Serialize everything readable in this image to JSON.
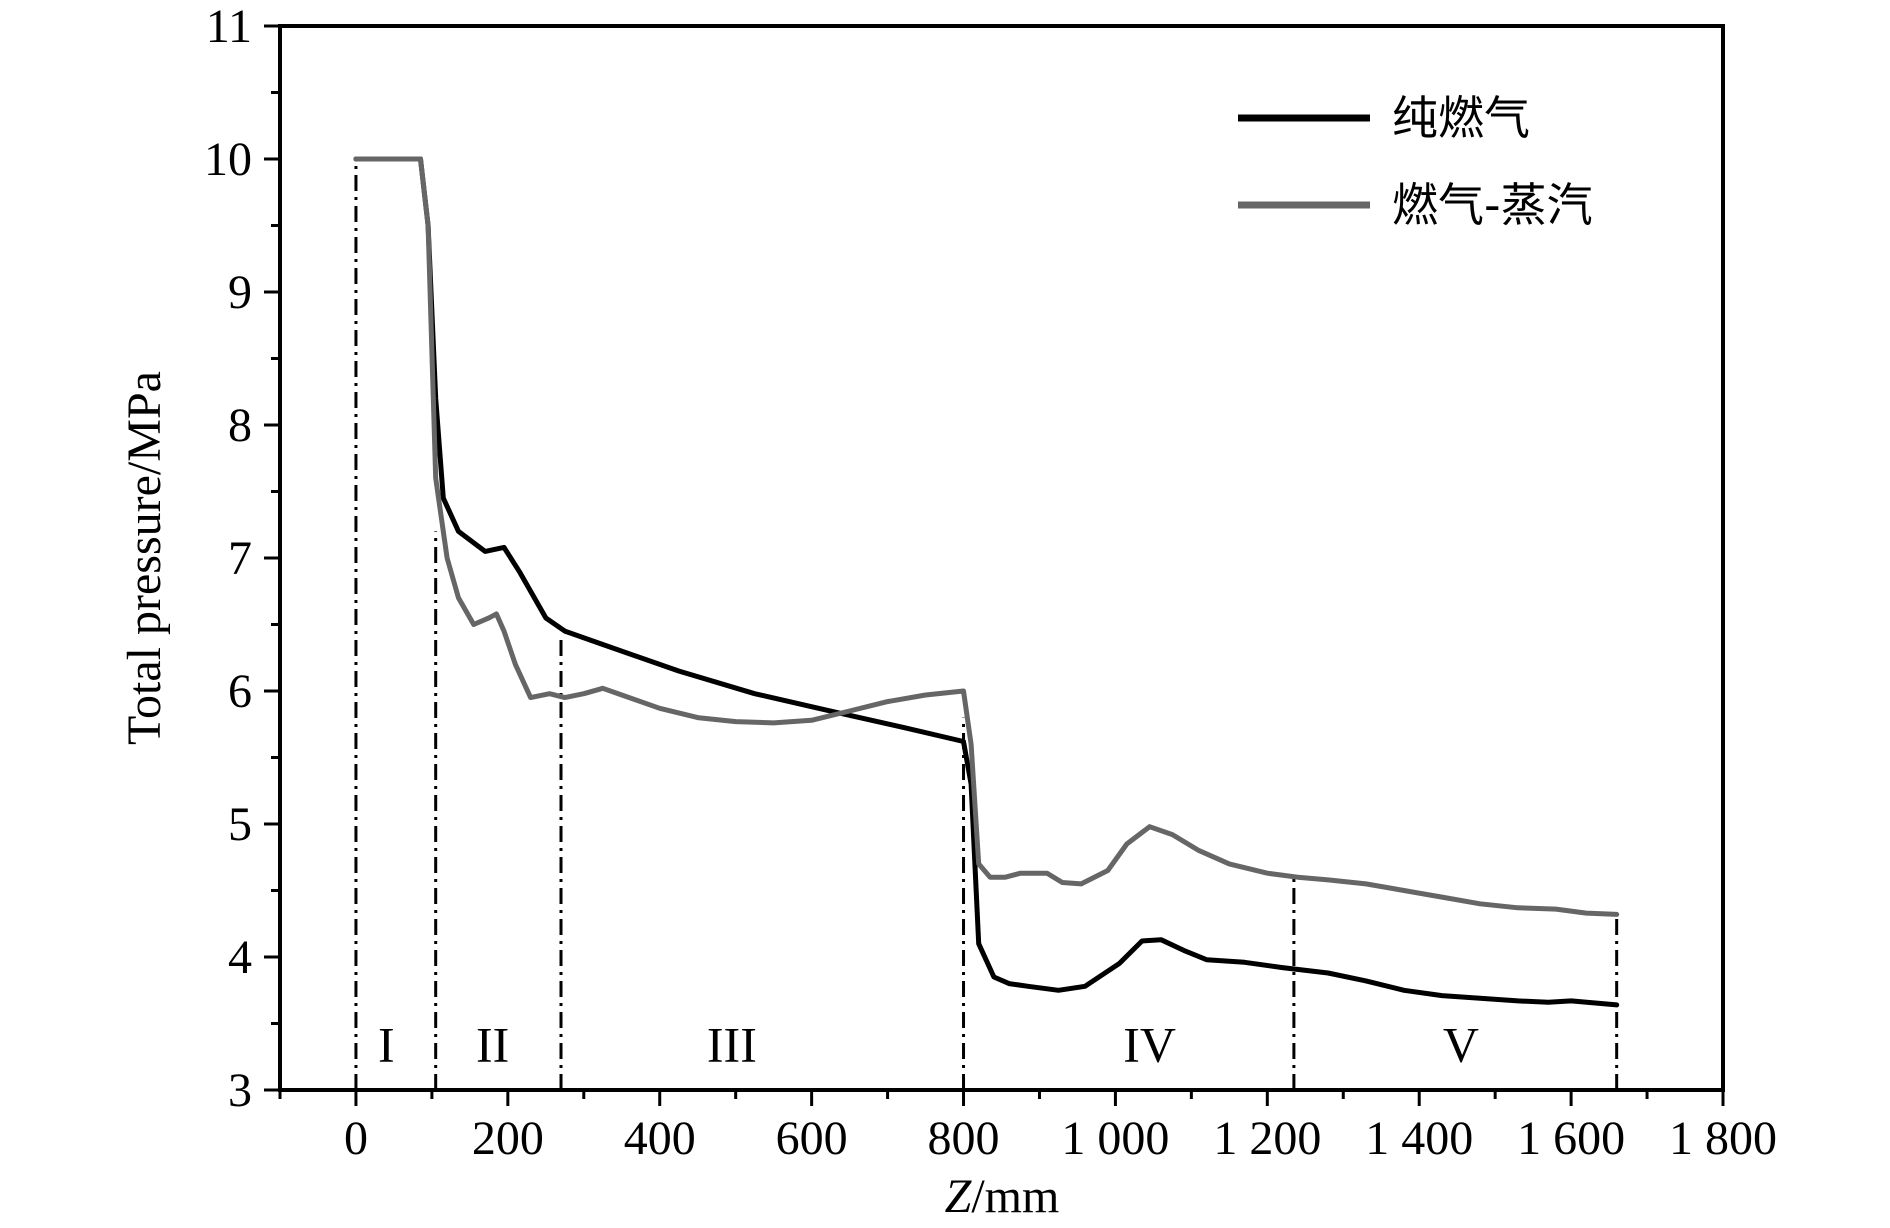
{
  "chart_data": {
    "type": "line",
    "xlabel_italic": "Z",
    "xlabel_unit": "/mm",
    "ylabel": "Total pressure/MPa",
    "xlim": [
      -100,
      1800
    ],
    "ylim": [
      3,
      11
    ],
    "xticks": [
      0,
      200,
      400,
      600,
      800,
      1000,
      1200,
      1400,
      1600,
      1800
    ],
    "xtick_labels": [
      "0",
      "200",
      "400",
      "600",
      "800",
      "1 000",
      "1 200",
      "1 400",
      "1 600",
      "1 800"
    ],
    "yticks": [
      3,
      4,
      5,
      6,
      7,
      8,
      9,
      10,
      11
    ],
    "ytick_labels": [
      "3",
      "4",
      "5",
      "6",
      "7",
      "8",
      "9",
      "10",
      "11"
    ],
    "legend_position": "top-right",
    "boundaries": [
      {
        "x": 0,
        "y_top": 10
      },
      {
        "x": 105,
        "y_top": 7.2
      },
      {
        "x": 270,
        "y_top": 6.4
      },
      {
        "x": 800,
        "y_top": 5.8
      },
      {
        "x": 1235,
        "y_top": 4.6
      },
      {
        "x": 1660,
        "y_top": 4.3
      }
    ],
    "regions": [
      {
        "label": "I",
        "x": 40
      },
      {
        "label": "II",
        "x": 180
      },
      {
        "label": "III",
        "x": 495
      },
      {
        "label": "IV",
        "x": 1045
      },
      {
        "label": "V",
        "x": 1455
      }
    ],
    "region_label_y": 3.35,
    "series": [
      {
        "name": "纯燃气",
        "color": "#000000",
        "points": [
          [
            0,
            10
          ],
          [
            85,
            10
          ],
          [
            95,
            9.5
          ],
          [
            105,
            8.2
          ],
          [
            115,
            7.45
          ],
          [
            135,
            7.2
          ],
          [
            170,
            7.05
          ],
          [
            195,
            7.08
          ],
          [
            215,
            6.9
          ],
          [
            235,
            6.7
          ],
          [
            250,
            6.55
          ],
          [
            275,
            6.45
          ],
          [
            325,
            6.35
          ],
          [
            425,
            6.15
          ],
          [
            525,
            5.98
          ],
          [
            625,
            5.85
          ],
          [
            725,
            5.72
          ],
          [
            800,
            5.62
          ],
          [
            810,
            5.3
          ],
          [
            820,
            4.1
          ],
          [
            840,
            3.85
          ],
          [
            860,
            3.8
          ],
          [
            885,
            3.78
          ],
          [
            925,
            3.75
          ],
          [
            960,
            3.78
          ],
          [
            1005,
            3.95
          ],
          [
            1035,
            4.12
          ],
          [
            1060,
            4.13
          ],
          [
            1090,
            4.05
          ],
          [
            1120,
            3.98
          ],
          [
            1170,
            3.96
          ],
          [
            1220,
            3.92
          ],
          [
            1280,
            3.88
          ],
          [
            1330,
            3.82
          ],
          [
            1380,
            3.75
          ],
          [
            1430,
            3.71
          ],
          [
            1480,
            3.69
          ],
          [
            1530,
            3.67
          ],
          [
            1570,
            3.66
          ],
          [
            1600,
            3.67
          ],
          [
            1660,
            3.64
          ]
        ]
      },
      {
        "name": "燃气-蒸汽",
        "color": "#666666",
        "points": [
          [
            0,
            10
          ],
          [
            85,
            10
          ],
          [
            95,
            9.5
          ],
          [
            105,
            7.6
          ],
          [
            120,
            7.0
          ],
          [
            135,
            6.7
          ],
          [
            155,
            6.5
          ],
          [
            175,
            6.55
          ],
          [
            185,
            6.58
          ],
          [
            195,
            6.45
          ],
          [
            210,
            6.2
          ],
          [
            230,
            5.95
          ],
          [
            255,
            5.98
          ],
          [
            275,
            5.95
          ],
          [
            300,
            5.98
          ],
          [
            325,
            6.02
          ],
          [
            350,
            5.97
          ],
          [
            400,
            5.87
          ],
          [
            450,
            5.8
          ],
          [
            500,
            5.77
          ],
          [
            550,
            5.76
          ],
          [
            600,
            5.78
          ],
          [
            650,
            5.85
          ],
          [
            700,
            5.92
          ],
          [
            750,
            5.97
          ],
          [
            800,
            6.0
          ],
          [
            810,
            5.6
          ],
          [
            820,
            4.7
          ],
          [
            835,
            4.6
          ],
          [
            855,
            4.6
          ],
          [
            875,
            4.63
          ],
          [
            910,
            4.63
          ],
          [
            930,
            4.56
          ],
          [
            955,
            4.55
          ],
          [
            990,
            4.65
          ],
          [
            1015,
            4.85
          ],
          [
            1045,
            4.98
          ],
          [
            1075,
            4.92
          ],
          [
            1110,
            4.8
          ],
          [
            1150,
            4.7
          ],
          [
            1200,
            4.63
          ],
          [
            1240,
            4.6
          ],
          [
            1280,
            4.58
          ],
          [
            1330,
            4.55
          ],
          [
            1380,
            4.5
          ],
          [
            1430,
            4.45
          ],
          [
            1480,
            4.4
          ],
          [
            1530,
            4.37
          ],
          [
            1580,
            4.36
          ],
          [
            1620,
            4.33
          ],
          [
            1660,
            4.32
          ]
        ]
      }
    ]
  }
}
